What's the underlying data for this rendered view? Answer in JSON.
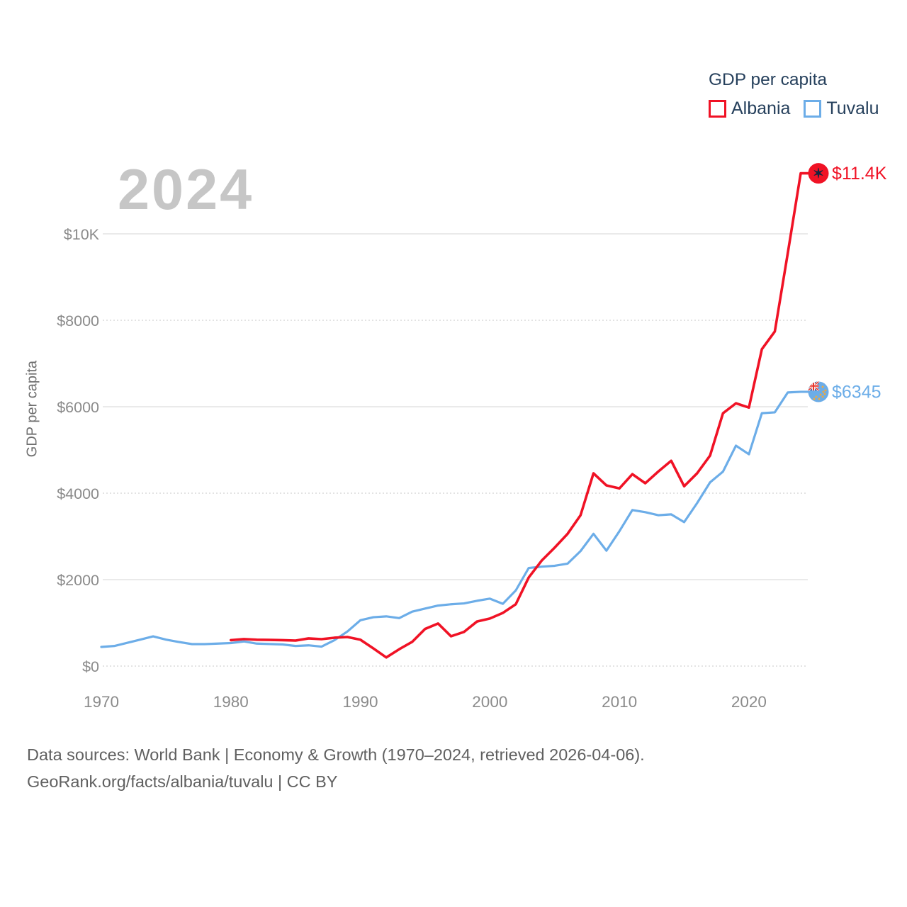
{
  "legend": {
    "title": "GDP per capita",
    "series": [
      {
        "label": "Albania",
        "color": "#f01225"
      },
      {
        "label": "Tuvalu",
        "color": "#6cade8"
      }
    ]
  },
  "watermark_year": "2024",
  "footer": {
    "line1": "Data sources: World Bank | Economy & Growth (1970–2024, retrieved 2026-04-06).",
    "line2": "GeoRank.org/facts/albania/tuvalu | CC BY"
  },
  "chart_data": {
    "type": "line",
    "title": "GDP per capita",
    "ylabel": "GDP per capita",
    "xlim": [
      1970,
      2024
    ],
    "ylim": [
      0,
      11400
    ],
    "grid": true,
    "legend_position": "top-right",
    "x_ticks": [
      1970,
      1980,
      1990,
      2000,
      2010,
      2020
    ],
    "y_ticks": [
      {
        "value": 0,
        "label": "$0"
      },
      {
        "value": 2000,
        "label": "$2000"
      },
      {
        "value": 4000,
        "label": "$4000"
      },
      {
        "value": 6000,
        "label": "$6000"
      },
      {
        "value": 8000,
        "label": "$8000"
      },
      {
        "value": 10000,
        "label": "$10K"
      }
    ],
    "series": [
      {
        "name": "Tuvalu",
        "color": "#6cade8",
        "start_year": 1970,
        "end_label": "$6345",
        "end_value": 6345,
        "marker_icon": "tuvalu-flag-marker",
        "values": [
          443,
          465,
          537,
          611,
          688,
          611,
          557,
          508,
          508,
          520,
          533,
          570,
          520,
          510,
          500,
          465,
          480,
          450,
          600,
          800,
          1060,
          1130,
          1150,
          1110,
          1260,
          1330,
          1400,
          1430,
          1450,
          1510,
          1560,
          1440,
          1750,
          2270,
          2300,
          2320,
          2370,
          2660,
          3060,
          2670,
          3120,
          3610,
          3560,
          3490,
          3510,
          3330,
          3770,
          4250,
          4500,
          5100,
          4900,
          5850,
          5870,
          6330,
          6345
        ]
      },
      {
        "name": "Albania",
        "color": "#f01225",
        "start_year": 1980,
        "end_label": "$11.4K",
        "end_value": 11400,
        "marker_icon": "albania-flag-marker",
        "values": [
          600,
          625,
          610,
          605,
          600,
          590,
          640,
          623,
          656,
          672,
          610,
          410,
          200,
          390,
          560,
          860,
          985,
          690,
          790,
          1030,
          1100,
          1230,
          1430,
          2050,
          2440,
          2740,
          3060,
          3490,
          4460,
          4180,
          4110,
          4440,
          4230,
          4500,
          4750,
          4160,
          4460,
          4870,
          5850,
          6080,
          5980,
          7330,
          7740,
          9550,
          11400
        ]
      }
    ]
  }
}
